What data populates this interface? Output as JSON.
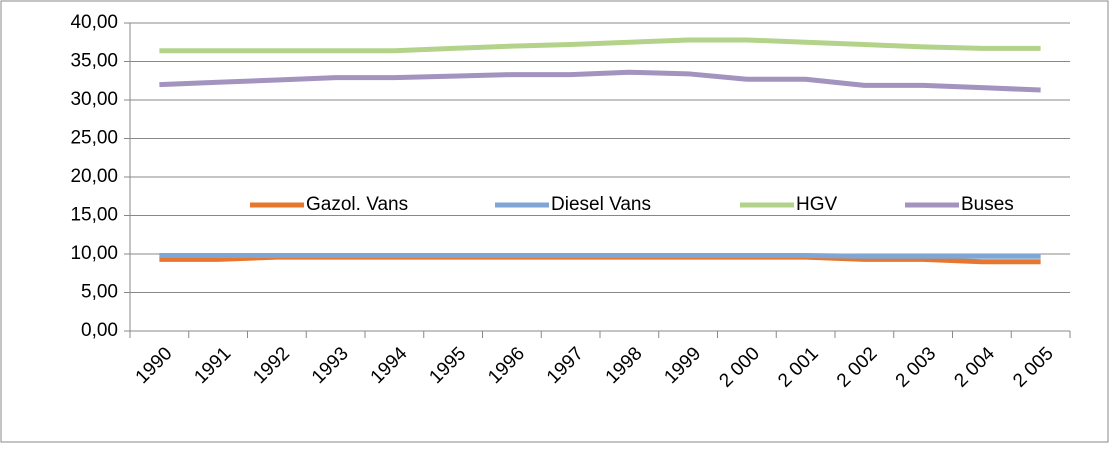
{
  "chart_data": {
    "type": "line",
    "categories": [
      "1990",
      "1991",
      "1992",
      "1993",
      "1994",
      "1995",
      "1996",
      "1997",
      "1998",
      "1999",
      "2 000",
      "2 001",
      "2 002",
      "2 003",
      "2 004",
      "2 005"
    ],
    "series": [
      {
        "name": "Gazol. Vans",
        "color": "#e8772e",
        "values": [
          9.3,
          9.3,
          9.6,
          9.6,
          9.6,
          9.6,
          9.6,
          9.6,
          9.6,
          9.6,
          9.6,
          9.6,
          9.3,
          9.3,
          9.0,
          9.0
        ]
      },
      {
        "name": "Diesel Vans",
        "color": "#7fa6d4",
        "values": [
          9.8,
          9.8,
          9.8,
          9.8,
          9.8,
          9.8,
          9.8,
          9.8,
          9.8,
          9.8,
          9.8,
          9.8,
          9.7,
          9.7,
          9.7,
          9.7
        ]
      },
      {
        "name": "HGV",
        "color": "#b3d38b",
        "values": [
          36.4,
          36.4,
          36.4,
          36.4,
          36.4,
          36.7,
          37.0,
          37.2,
          37.5,
          37.8,
          37.8,
          37.5,
          37.2,
          36.9,
          36.7,
          36.7
        ]
      },
      {
        "name": "Buses",
        "color": "#a393bf",
        "values": [
          32.0,
          32.3,
          32.6,
          32.9,
          32.9,
          33.1,
          33.3,
          33.3,
          33.6,
          33.4,
          32.7,
          32.7,
          31.9,
          31.9,
          31.6,
          31.3
        ]
      }
    ],
    "ylim": [
      0,
      40
    ],
    "yticks": [
      {
        "value": 0,
        "label": "0,00"
      },
      {
        "value": 5,
        "label": "5,00"
      },
      {
        "value": 10,
        "label": "10,00"
      },
      {
        "value": 15,
        "label": "15,00"
      },
      {
        "value": 20,
        "label": "20,00"
      },
      {
        "value": 25,
        "label": "25,00"
      },
      {
        "value": 30,
        "label": "30,00"
      },
      {
        "value": 35,
        "label": "35,00"
      },
      {
        "value": 40,
        "label": "40,00"
      }
    ],
    "grid": true,
    "legend": "center"
  }
}
